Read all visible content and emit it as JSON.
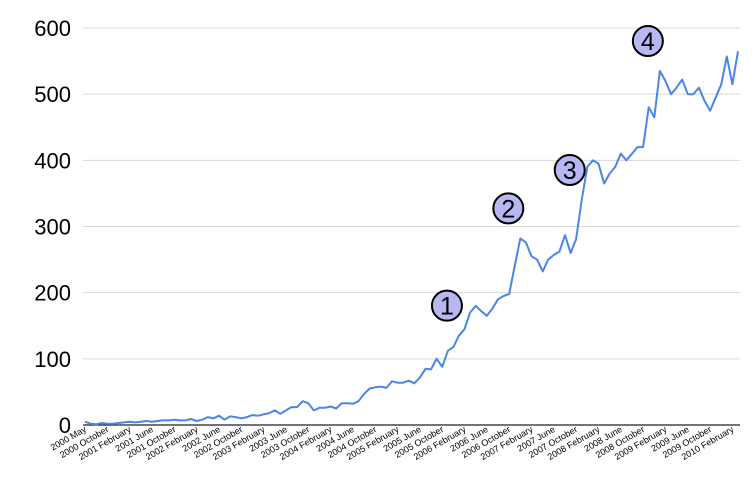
{
  "chart_data": {
    "type": "line",
    "title": "",
    "xlabel": "",
    "ylabel": "",
    "ylim": [
      0,
      600
    ],
    "y_ticks": [
      0,
      100,
      200,
      300,
      400,
      500,
      600
    ],
    "grid": "horizontal",
    "line_color": "#4a86e8",
    "annotation_fill": "#b7b7f2",
    "x_tick_labels": [
      "2000 May",
      "2000 October",
      "2001 February",
      "2001 June",
      "2001 October",
      "2002 February",
      "2002 June",
      "2002 October",
      "2003 February",
      "2003 June",
      "2003 October",
      "2004 February",
      "2004 June",
      "2004 October",
      "2005 February",
      "2005 June",
      "2005 October",
      "2006 February",
      "2006 June",
      "2006 October",
      "2007 February",
      "2007 June",
      "2007 October",
      "2008 February",
      "2008 June",
      "2008 October",
      "2009 February",
      "2009 June",
      "2009 October",
      "2010 February"
    ],
    "series": [
      {
        "values": [
          5,
          2,
          1,
          3,
          2,
          2,
          3,
          4,
          5,
          4,
          5,
          6,
          5,
          6,
          7,
          7,
          8,
          7,
          7,
          9,
          6,
          8,
          12,
          10,
          14,
          8,
          13,
          12,
          10,
          12,
          15,
          14,
          16,
          18,
          22,
          17,
          22,
          27,
          27,
          36,
          33,
          22,
          26,
          26,
          28,
          25,
          33,
          33,
          32,
          36,
          47,
          55,
          57,
          58,
          56,
          66,
          64,
          64,
          67,
          63,
          72,
          85,
          84,
          100,
          88,
          112,
          118,
          135,
          145,
          170,
          180,
          172,
          165,
          176,
          190,
          195,
          198,
          241,
          282,
          276,
          255,
          250,
          232,
          250,
          257,
          262,
          287,
          260,
          281,
          340,
          390,
          400,
          395,
          365,
          380,
          390,
          410,
          400,
          410,
          420,
          420,
          480,
          465,
          535,
          520,
          500,
          510,
          522,
          500,
          500,
          510,
          490,
          475,
          495,
          515,
          557,
          515,
          565
        ]
      }
    ],
    "annotations": [
      {
        "label": "1",
        "x_index": 67
      },
      {
        "label": "2",
        "x_index": 78
      },
      {
        "label": "3",
        "x_index": 89
      },
      {
        "label": "4",
        "x_index": 103
      }
    ]
  }
}
